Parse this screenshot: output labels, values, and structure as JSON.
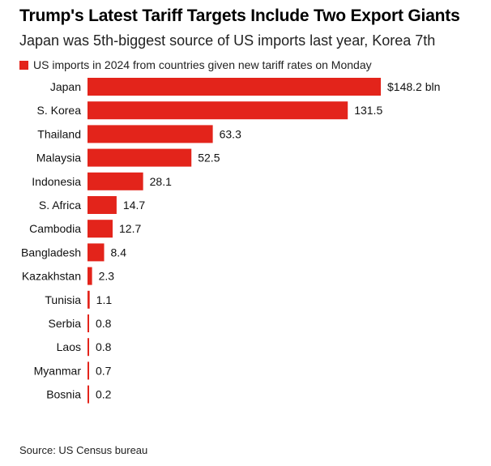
{
  "title": "Trump's Latest Tariff Targets Include Two Export Giants",
  "subtitle": "Japan was 5th-biggest source of US imports last year, Korea 7th",
  "source": "Source: US Census bureau",
  "colors": {
    "bar": "#e3241b",
    "text": "#111111"
  },
  "chart_data": {
    "type": "bar",
    "orientation": "horizontal",
    "categories": [
      "Japan",
      "S. Korea",
      "Thailand",
      "Malaysia",
      "Indonesia",
      "S. Africa",
      "Cambodia",
      "Bangladesh",
      "Kazakhstan",
      "Tunisia",
      "Serbia",
      "Laos",
      "Myanmar",
      "Bosnia"
    ],
    "series": [
      {
        "name": "US imports in 2024 from countries given new tariff rates on Monday",
        "values": [
          148.2,
          131.5,
          63.3,
          52.5,
          28.1,
          14.7,
          12.7,
          8.4,
          2.3,
          1.1,
          0.8,
          0.8,
          0.7,
          0.2
        ],
        "labels": [
          "$148.2 bln",
          "131.5",
          "63.3",
          "52.5",
          "28.1",
          "14.7",
          "12.7",
          "8.4",
          "2.3",
          "1.1",
          "0.8",
          "0.8",
          "0.7",
          "0.2"
        ]
      }
    ],
    "xlim": [
      0,
      148.2
    ],
    "grid": false,
    "legend_position": "top-left"
  }
}
